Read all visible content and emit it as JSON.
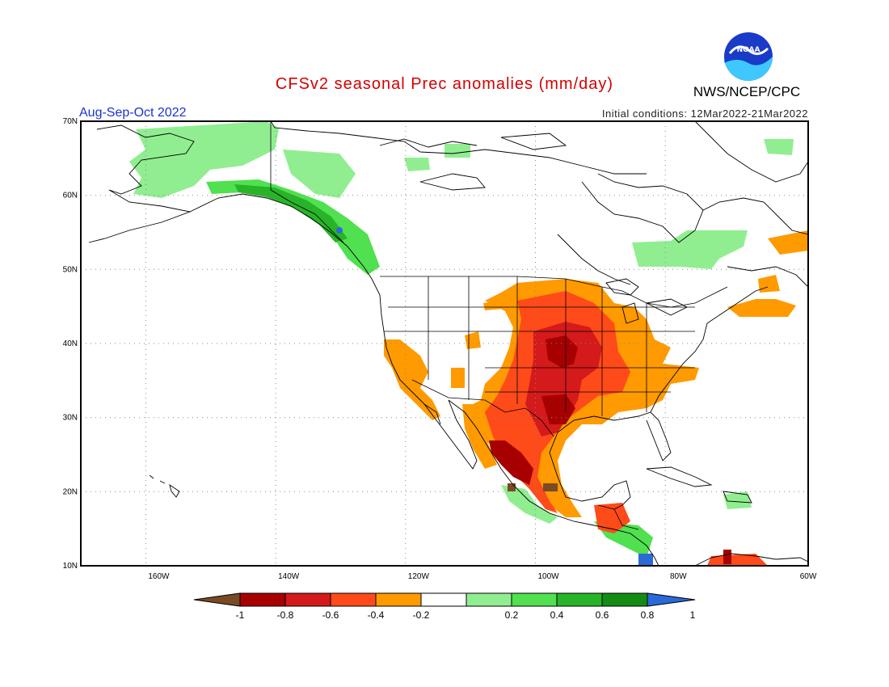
{
  "header": {
    "title": "CFSv2 seasonal Prec anomalies (mm/day)",
    "season": "Aug-Sep-Oct 2022",
    "initial_conditions": "Initial conditions: 12Mar2022-21Mar2022",
    "agency": "NWS/NCEP/CPC",
    "logo_text": "NOAA"
  },
  "map": {
    "lat_labels": [
      "70N",
      "60N",
      "50N",
      "40N",
      "30N",
      "20N",
      "10N"
    ],
    "lon_labels": [
      "160W",
      "140W",
      "120W",
      "100W",
      "80W",
      "60W"
    ],
    "lat_range": [
      10,
      70
    ],
    "lon_range": [
      -172,
      -60
    ],
    "grid": "dotted"
  },
  "colorbar": {
    "labels": [
      "-1",
      "-0.8",
      "-0.6",
      "-0.4",
      "-0.2",
      "0.2",
      "0.4",
      "0.6",
      "0.8",
      "1"
    ],
    "colors": [
      "#7a4a24",
      "#a60000",
      "#d41a1a",
      "#ff4a1a",
      "#ff9a00",
      "#ffffff",
      "#90ee90",
      "#50e050",
      "#28b428",
      "#148c14",
      "#2a6ad8"
    ]
  }
}
